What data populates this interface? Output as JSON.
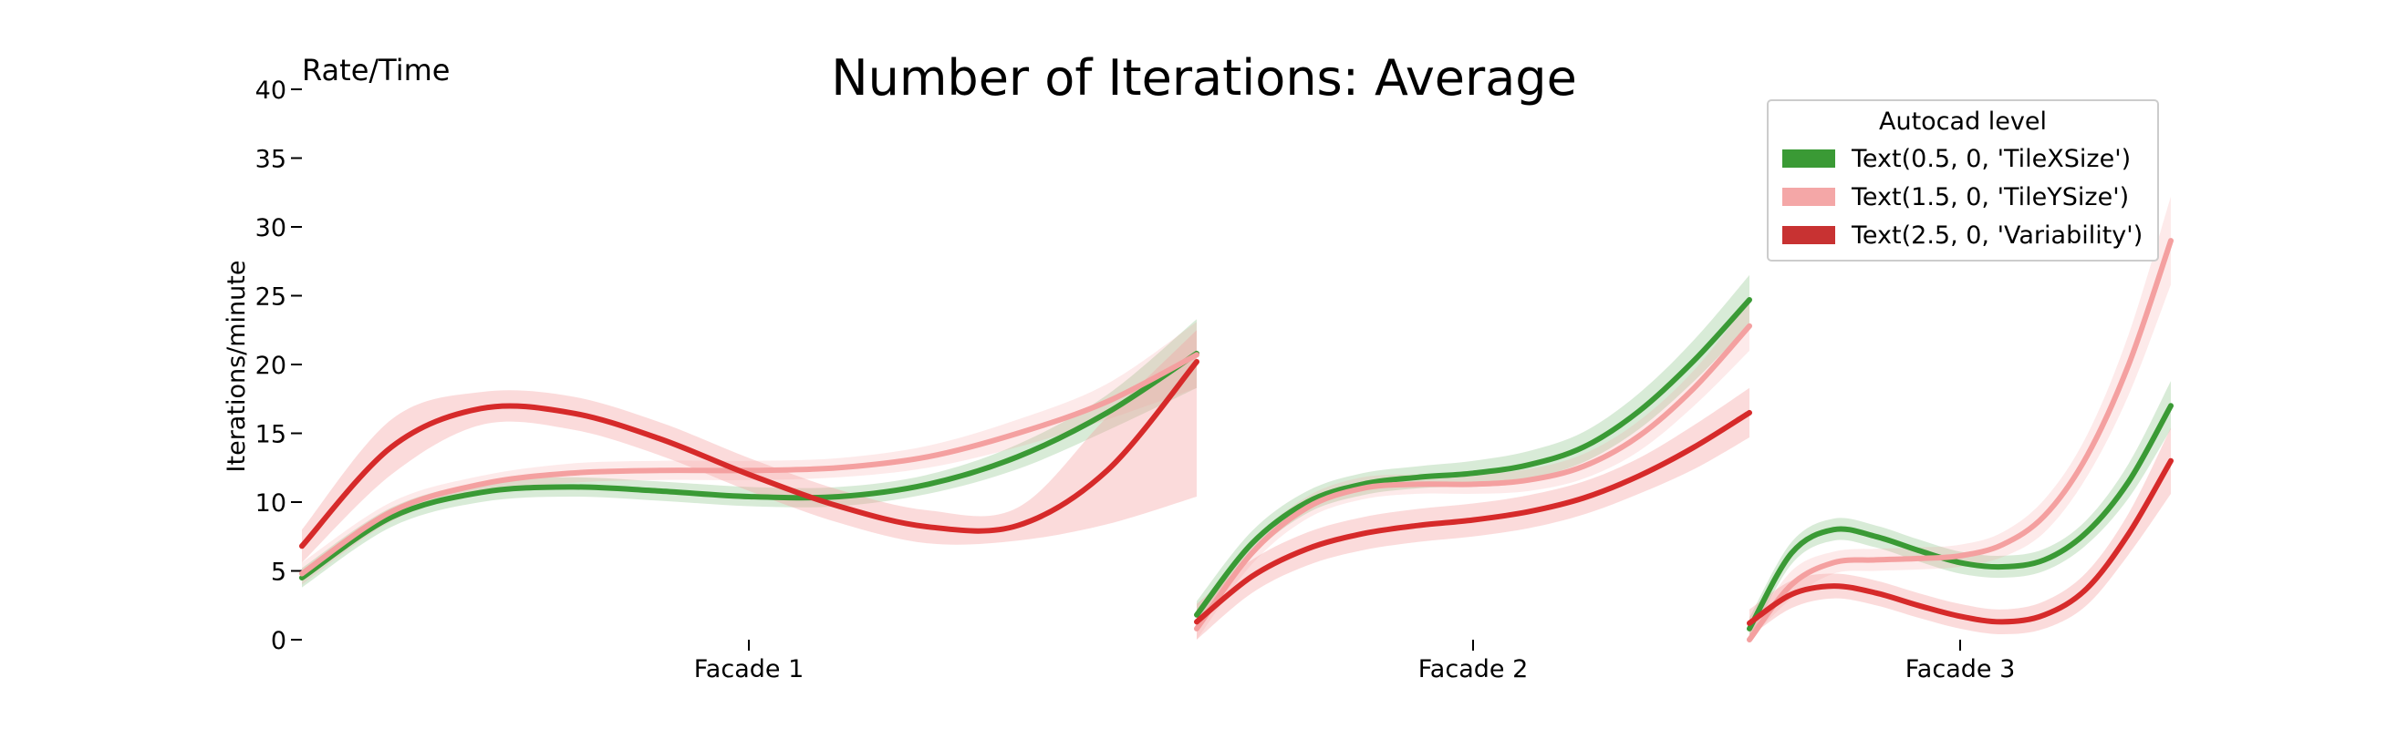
{
  "chart_data": {
    "type": "line",
    "title": "Number of Iterations: Average",
    "corner_label": "Rate/Time",
    "ylabel": "Iterations/minute",
    "xlabel": "",
    "ylim": [
      0,
      40
    ],
    "yticks": [
      0,
      5,
      10,
      15,
      20,
      25,
      30,
      35,
      40
    ],
    "grid": false,
    "legend": {
      "title": "Autocad level",
      "placement": "top-right"
    },
    "series": [
      {
        "name": "Text(0.5, 0, 'TileXSize')",
        "color": "#3a9a35",
        "band_color": "#3a9a35"
      },
      {
        "name": "Text(1.5, 0, 'TileYSize')",
        "color": "#f4a0a0",
        "band_color": "#f4a0a0"
      },
      {
        "name": "Text(2.5, 0, 'Variability')",
        "color": "#d62a2a",
        "band_color": "#f4a0a0"
      }
    ],
    "facets": [
      {
        "label": "Facade 1",
        "t": [
          0,
          0.1,
          0.2,
          0.3,
          0.4,
          0.5,
          0.6,
          0.7,
          0.8,
          0.9,
          1.0
        ],
        "curves": [
          {
            "y": [
              4.5,
              8.9,
              10.7,
              11.1,
              10.8,
              10.4,
              10.4,
              11.3,
              13.3,
              16.5,
              20.8
            ],
            "lo": [
              3.8,
              8.2,
              10.0,
              10.4,
              10.1,
              9.7,
              9.7,
              10.6,
              12.4,
              15.2,
              18.3
            ],
            "hi": [
              5.2,
              9.6,
              11.4,
              11.8,
              11.5,
              11.1,
              11.1,
              12.0,
              14.2,
              17.8,
              23.3
            ]
          },
          {
            "y": [
              4.8,
              9.3,
              11.3,
              12.1,
              12.3,
              12.3,
              12.5,
              13.3,
              15.0,
              17.3,
              20.7
            ],
            "lo": [
              4.0,
              8.6,
              10.7,
              11.4,
              11.6,
              11.6,
              11.8,
              12.5,
              14.0,
              16.0,
              18.3
            ],
            "hi": [
              5.6,
              10.0,
              11.9,
              12.8,
              13.0,
              13.0,
              13.2,
              14.1,
              16.0,
              18.6,
              23.1
            ]
          },
          {
            "y": [
              6.8,
              14.0,
              16.8,
              16.5,
              14.6,
              12.0,
              9.7,
              8.2,
              8.3,
              12.3,
              20.2
            ],
            "lo": [
              5.6,
              12.0,
              15.6,
              15.3,
              13.4,
              10.8,
              8.5,
              7.0,
              7.2,
              8.4,
              10.4
            ],
            "hi": [
              8.0,
              16.0,
              18.0,
              17.7,
              15.8,
              13.2,
              10.9,
              9.4,
              9.6,
              16.2,
              22.5
            ]
          }
        ]
      },
      {
        "label": "Facade 2",
        "t": [
          0,
          0.1,
          0.2,
          0.3,
          0.4,
          0.5,
          0.6,
          0.7,
          0.8,
          0.9,
          1.0
        ],
        "curves": [
          {
            "y": [
              1.8,
              7.0,
              10.0,
              11.3,
              11.8,
              12.1,
              12.7,
              14.0,
              16.6,
              20.3,
              24.7
            ],
            "lo": [
              0.8,
              6.1,
              9.2,
              10.5,
              11.0,
              11.2,
              11.7,
              12.9,
              15.3,
              18.8,
              22.9
            ],
            "hi": [
              2.8,
              7.9,
              10.8,
              12.1,
              12.6,
              13.0,
              13.7,
              15.1,
              17.9,
              21.8,
              26.5
            ]
          },
          {
            "y": [
              0.8,
              6.3,
              9.6,
              11.0,
              11.3,
              11.3,
              11.6,
              12.6,
              14.8,
              18.3,
              22.8
            ],
            "lo": [
              0.0,
              5.5,
              8.8,
              10.2,
              10.6,
              10.6,
              10.8,
              11.7,
              13.7,
              17.0,
              21.0
            ],
            "hi": [
              1.6,
              7.1,
              10.4,
              11.8,
              12.0,
              12.0,
              12.4,
              13.5,
              15.9,
              19.6,
              24.6
            ]
          },
          {
            "y": [
              1.3,
              4.6,
              6.6,
              7.7,
              8.3,
              8.7,
              9.3,
              10.3,
              11.9,
              14.0,
              16.5
            ],
            "lo": [
              0.0,
              3.4,
              5.4,
              6.5,
              7.1,
              7.5,
              8.1,
              9.1,
              10.6,
              12.4,
              14.7
            ],
            "hi": [
              2.6,
              5.8,
              7.8,
              8.9,
              9.5,
              9.9,
              10.5,
              11.5,
              13.2,
              15.6,
              18.3
            ]
          }
        ]
      },
      {
        "label": "Facade 3",
        "t": [
          0,
          0.1,
          0.2,
          0.3,
          0.4,
          0.5,
          0.6,
          0.7,
          0.8,
          0.9,
          1.0
        ],
        "curves": [
          {
            "y": [
              0.8,
              6.3,
              8.0,
              7.5,
              6.5,
              5.6,
              5.3,
              5.8,
              7.8,
              11.5,
              17.0
            ],
            "lo": [
              0.0,
              5.5,
              7.2,
              6.7,
              5.7,
              4.8,
              4.5,
              5.0,
              6.9,
              10.3,
              15.3
            ],
            "hi": [
              1.6,
              7.1,
              8.8,
              8.3,
              7.3,
              6.4,
              6.1,
              6.6,
              8.7,
              12.8,
              18.8
            ]
          },
          {
            "y": [
              0.0,
              4.0,
              5.6,
              5.8,
              5.9,
              6.1,
              6.9,
              9.0,
              13.3,
              20.0,
              29.0
            ],
            "lo": [
              0.0,
              3.0,
              4.8,
              5.0,
              5.1,
              5.3,
              6.0,
              7.8,
              11.8,
              17.8,
              25.8
            ],
            "hi": [
              0.6,
              5.0,
              6.4,
              6.6,
              6.7,
              6.9,
              7.8,
              10.2,
              14.8,
              22.2,
              32.2
            ]
          },
          {
            "y": [
              1.2,
              3.3,
              3.9,
              3.4,
              2.5,
              1.7,
              1.3,
              1.8,
              3.7,
              7.7,
              13.0
            ],
            "lo": [
              0.2,
              2.3,
              3.0,
              2.5,
              1.6,
              0.8,
              0.4,
              0.8,
              2.5,
              6.2,
              10.6
            ],
            "hi": [
              2.2,
              4.3,
              4.8,
              4.3,
              3.4,
              2.6,
              2.2,
              2.8,
              4.9,
              9.2,
              15.4
            ]
          }
        ]
      }
    ]
  }
}
